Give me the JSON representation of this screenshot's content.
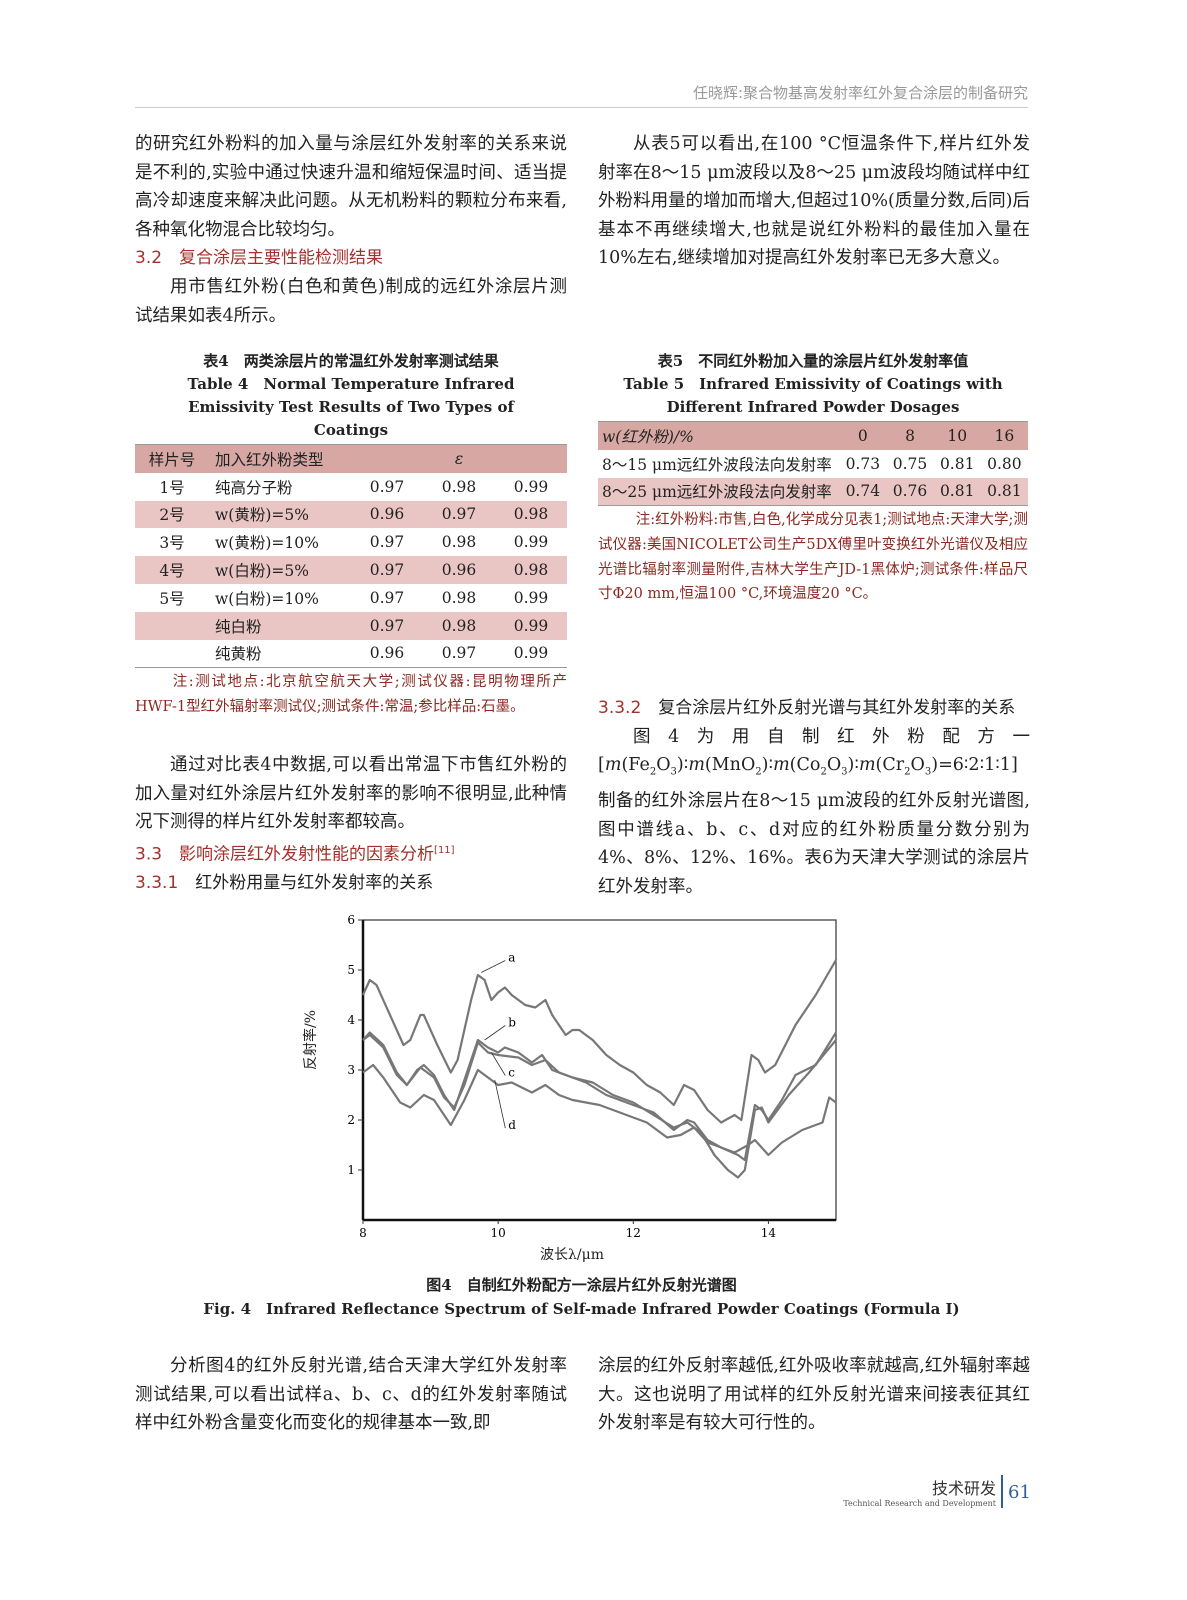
{
  "running_header": "任晓辉:聚合物基高发射率红外复合涂层的制备研究",
  "left_col": {
    "p1": "的研究红外粉料的加入量与涂层红外发射率的关系来说是不利的,实验中通过快速升温和缩短保温时间、适当提高冷却速度来解决此问题。从无机粉料的颗粒分布来看,各种氧化物混合比较均匀。",
    "h32_num": "3.2",
    "h32_text": "复合涂层主要性能检测结果",
    "p2": "用市售红外粉(白色和黄色)制成的远红外涂层片测试结果如表4所示。",
    "p3": "通过对比表4中数据,可以看出常温下市售红外粉的加入量对红外涂层片红外发射率的影响不很明显,此种情况下测得的样片红外发射率都较高。",
    "h33_num": "3.3",
    "h33_text": "影响涂层红外发射性能的因素分析",
    "h33_ref": "[11]",
    "h331_num": "3.3.1",
    "h331_text": "红外粉用量与红外发射率的关系"
  },
  "right_col": {
    "p1": "从表5可以看出,在100 °C恒温条件下,样片红外发射率在8～15 μm波段以及8～25 μm波段均随试样中红外粉料用量的增加而增大,但超过10%(质量分数,后同)后基本不再继续增大,也就是说红外粉料的最佳加入量在10%左右,继续增加对提高红外发射率已无多大意义。",
    "h332_num": "3.3.2",
    "h332_text": "复合涂层片红外反射光谱与其红外发射率的关系",
    "p2_a": "图4为用自制红外粉配方一[",
    "p2_b": "]制备的红外涂层片在8～15 μm波段的红外反射光谱图,图中谱线a、b、c、d对应的红外粉质量分数分别为4%、8%、12%、16%。表6为天津大学测试的涂层片红外发射率。"
  },
  "table4": {
    "caption_cn": "表4　两类涂层片的常温红外发射率测试结果",
    "caption_en": "Table 4　Normal Temperature Infrared Emissivity Test Results of Two Types of Coatings",
    "headers": [
      "样片号",
      "加入红外粉类型",
      "ε"
    ],
    "rows": [
      [
        "1号",
        "纯高分子粉",
        "0.97",
        "0.98",
        "0.99"
      ],
      [
        "2号",
        "w(黄粉)=5%",
        "0.96",
        "0.97",
        "0.98"
      ],
      [
        "3号",
        "w(黄粉)=10%",
        "0.97",
        "0.98",
        "0.99"
      ],
      [
        "4号",
        "w(白粉)=5%",
        "0.97",
        "0.96",
        "0.98"
      ],
      [
        "5号",
        "w(白粉)=10%",
        "0.97",
        "0.98",
        "0.99"
      ],
      [
        "",
        "纯白粉",
        "0.97",
        "0.98",
        "0.99"
      ],
      [
        "",
        "纯黄粉",
        "0.96",
        "0.97",
        "0.99"
      ]
    ],
    "note": "注:测试地点:北京航空航天大学;测试仪器:昆明物理所产HWF-1型红外辐射率测试仪;测试条件:常温;参比样品:石墨。"
  },
  "table5": {
    "caption_cn": "表5　不同红外粉加入量的涂层片红外发射率值",
    "caption_en": "Table 5　Infrared Emissivity of Coatings with Different Infrared Powder Dosages",
    "headers": [
      "w(红外粉)/%",
      "0",
      "8",
      "10",
      "16"
    ],
    "rows": [
      [
        "8～15 μm远红外波段法向发射率",
        "0.73",
        "0.75",
        "0.81",
        "0.80"
      ],
      [
        "8～25 μm远红外波段法向发射率",
        "0.74",
        "0.76",
        "0.81",
        "0.81"
      ]
    ],
    "note": "注:红外粉料:市售,白色,化学成分见表1;测试地点:天津大学;测试仪器:美国NICOLET公司生产5DX傅里叶变换红外光谱仪及相应光谱比辐射率测量附件,吉林大学生产JD-1黑体炉;测试条件:样品尺寸Φ20 mm,恒温100 °C,环境温度20 °C。"
  },
  "chart_data": {
    "type": "line",
    "xlabel": "波长λ/μm",
    "ylabel": "反射率/%",
    "xlim": [
      8,
      15
    ],
    "ylim": [
      0,
      6
    ],
    "xticks": [
      "8",
      "10",
      "12",
      "14"
    ],
    "yticks": [
      "1",
      "2",
      "3",
      "4",
      "5",
      "6"
    ],
    "grid": false,
    "line_color": "#777777",
    "series": [
      {
        "name": "a",
        "x": [
          8,
          8.1,
          8.2,
          8.4,
          8.6,
          8.7,
          8.85,
          8.9,
          9.1,
          9.3,
          9.4,
          9.6,
          9.7,
          9.8,
          9.9,
          10,
          10.1,
          10.2,
          10.4,
          10.55,
          10.7,
          10.8,
          11,
          11.1,
          11.2,
          11.4,
          11.6,
          11.8,
          12,
          12.2,
          12.4,
          12.6,
          12.75,
          12.9,
          13.1,
          13.3,
          13.5,
          13.6,
          13.75,
          13.85,
          13.95,
          14.1,
          14.4,
          14.7,
          15
        ],
        "y": [
          4.5,
          4.8,
          4.7,
          4.1,
          3.5,
          3.6,
          4.1,
          4.1,
          3.5,
          2.95,
          3.2,
          4.4,
          4.9,
          4.8,
          4.4,
          4.55,
          4.65,
          4.5,
          4.3,
          4.25,
          4.4,
          4.1,
          3.7,
          3.8,
          3.8,
          3.6,
          3.3,
          3.1,
          2.95,
          2.7,
          2.55,
          2.3,
          2.7,
          2.6,
          2.2,
          1.95,
          2.1,
          2.0,
          3.3,
          3.2,
          2.95,
          3.1,
          3.9,
          4.5,
          5.2
        ]
      },
      {
        "name": "b",
        "x": [
          8,
          8.1,
          8.3,
          8.5,
          8.65,
          8.8,
          8.9,
          9.05,
          9.2,
          9.35,
          9.5,
          9.7,
          9.85,
          10,
          10.1,
          10.3,
          10.5,
          10.65,
          10.8,
          11,
          11.3,
          11.6,
          12,
          12.3,
          12.6,
          12.8,
          12.9,
          13.1,
          13.3,
          13.55,
          13.65,
          13.8,
          13.9,
          14,
          14.2,
          14.4,
          14.7,
          15
        ],
        "y": [
          3.6,
          3.75,
          3.5,
          2.95,
          2.7,
          3.0,
          3.1,
          2.9,
          2.5,
          2.2,
          2.8,
          3.6,
          3.45,
          3.35,
          3.45,
          3.35,
          3.15,
          3.3,
          3.0,
          2.9,
          2.75,
          2.5,
          2.3,
          2.15,
          1.8,
          2.0,
          1.95,
          1.6,
          1.45,
          1.3,
          1.2,
          2.3,
          2.2,
          2.0,
          2.4,
          2.9,
          3.1,
          3.75
        ]
      },
      {
        "name": "c",
        "x": [
          8,
          8.1,
          8.3,
          8.5,
          8.65,
          8.85,
          9.05,
          9.2,
          9.35,
          9.5,
          9.7,
          9.85,
          10,
          10.3,
          10.5,
          10.7,
          10.9,
          11.1,
          11.4,
          11.7,
          12,
          12.3,
          12.6,
          12.8,
          13,
          13.2,
          13.4,
          13.55,
          13.65,
          13.8,
          13.9,
          14,
          14.3,
          14.6,
          15
        ],
        "y": [
          3.6,
          3.7,
          3.45,
          2.9,
          2.7,
          3.05,
          2.85,
          2.45,
          2.25,
          2.7,
          3.55,
          3.35,
          3.3,
          3.25,
          3.1,
          3.2,
          2.95,
          2.85,
          2.75,
          2.5,
          2.35,
          2.1,
          1.85,
          1.95,
          1.75,
          1.3,
          1.0,
          0.85,
          1.0,
          2.2,
          2.25,
          1.95,
          2.5,
          2.95,
          3.6
        ]
      },
      {
        "name": "d",
        "x": [
          8,
          8.15,
          8.3,
          8.55,
          8.7,
          8.9,
          9.05,
          9.3,
          9.5,
          9.7,
          9.85,
          10,
          10.2,
          10.5,
          10.7,
          10.9,
          11.1,
          11.5,
          11.8,
          12.2,
          12.5,
          12.7,
          12.9,
          13.1,
          13.3,
          13.5,
          13.7,
          13.8,
          14,
          14.2,
          14.5,
          14.8,
          14.9,
          15
        ],
        "y": [
          2.95,
          3.1,
          2.85,
          2.35,
          2.25,
          2.5,
          2.4,
          1.9,
          2.4,
          3.0,
          2.85,
          2.7,
          2.75,
          2.55,
          2.7,
          2.5,
          2.4,
          2.3,
          2.15,
          1.95,
          1.65,
          1.7,
          1.85,
          1.55,
          1.45,
          1.35,
          1.5,
          1.6,
          1.3,
          1.55,
          1.8,
          1.95,
          2.45,
          2.35
        ]
      }
    ],
    "annotations": [
      {
        "text": "a",
        "x": 10.15,
        "y": 5.25,
        "to": [
          9.75,
          4.95
        ]
      },
      {
        "text": "b",
        "x": 10.15,
        "y": 3.95,
        "to": [
          9.8,
          3.6
        ]
      },
      {
        "text": "c",
        "x": 10.15,
        "y": 2.95,
        "to": [
          9.9,
          3.35
        ]
      },
      {
        "text": "d",
        "x": 10.15,
        "y": 1.9,
        "to": [
          9.95,
          2.8
        ]
      }
    ]
  },
  "figure": {
    "caption_cn": "图4　自制红外粉配方一涂层片红外反射光谱图",
    "caption_en": "Fig. 4　Infrared Reflectance Spectrum of Self-made Infrared Powder Coatings (Formula Ⅰ)"
  },
  "bottom": {
    "left": "分析图4的红外反射光谱,结合天津大学红外发射率测试结果,可以看出试样a、b、c、d的红外发射率随试样中红外粉含量变化而变化的规律基本一致,即",
    "right": "涂层的红外反射率越低,红外吸收率就越高,红外辐射率越大。这也说明了用试样的红外反射光谱来间接表征其红外发射率是有较大可行性的。"
  },
  "footer": {
    "section_cn": "技术研发",
    "section_en": "Technical Research and Development",
    "page": "61"
  },
  "colors": {
    "heading": "#a3302a",
    "table_header": "#d7a7a4",
    "table_stripe": "#e9c6c4",
    "note": "#8b2a20"
  }
}
